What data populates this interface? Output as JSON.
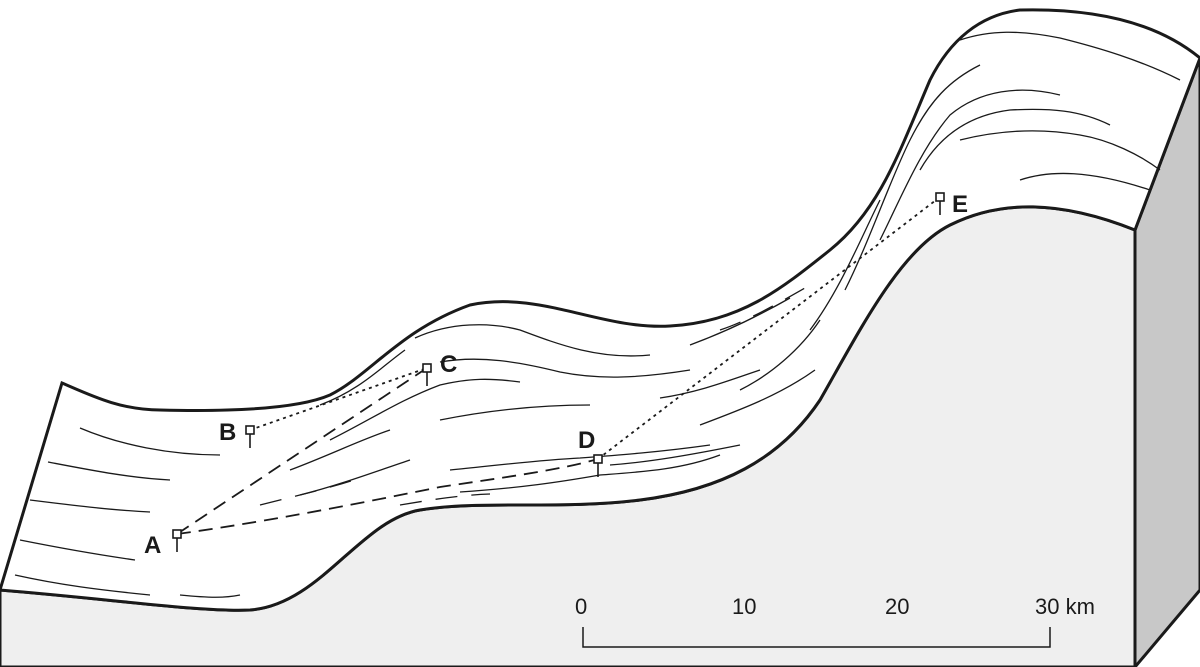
{
  "stations": [
    {
      "id": "A",
      "label": "A"
    },
    {
      "id": "B",
      "label": "B"
    },
    {
      "id": "C",
      "label": "C"
    },
    {
      "id": "D",
      "label": "D"
    },
    {
      "id": "E",
      "label": "E"
    }
  ],
  "scale_bar": {
    "ticks": [
      "0",
      "10",
      "20",
      "30 km"
    ]
  },
  "colors": {
    "outline": "#1a1a1a",
    "surface": "#ffffff",
    "side_face": "#efefef",
    "end_face": "#c8c8c8"
  }
}
